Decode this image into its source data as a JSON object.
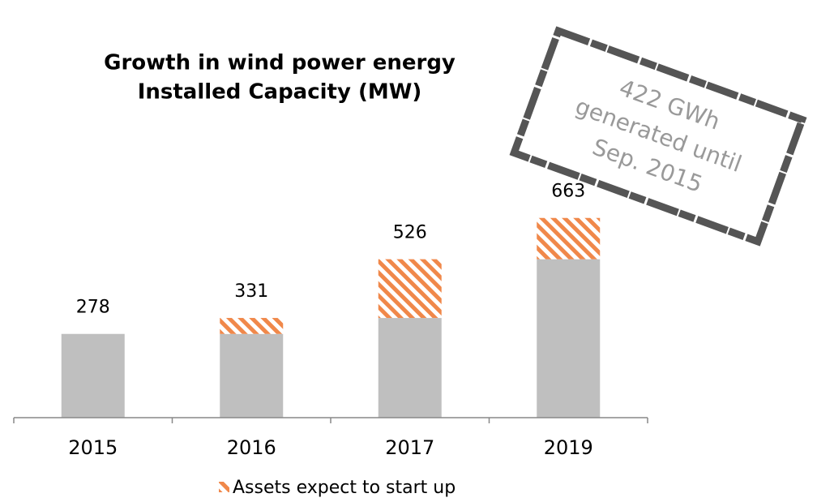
{
  "chart_data": {
    "type": "stacked_bar",
    "title": [
      "Growth in wind power energy",
      "Installed Capacity (MW)"
    ],
    "categories": [
      "2015",
      "2016",
      "2017",
      "2019"
    ],
    "series": [
      {
        "color": "#bfbfbf",
        "values": [
          278,
          278,
          331,
          526
        ]
      },
      {
        "name": "Assets expect to start up",
        "color": "#f0884a",
        "pattern": "hatch",
        "values": [
          0,
          53,
          195,
          137
        ]
      }
    ],
    "totals": [
      278,
      331,
      526,
      663
    ],
    "ylim": [
      0,
      700
    ],
    "annotation": [
      "422 GWh",
      "generated until",
      "Sep. 2015"
    ]
  }
}
